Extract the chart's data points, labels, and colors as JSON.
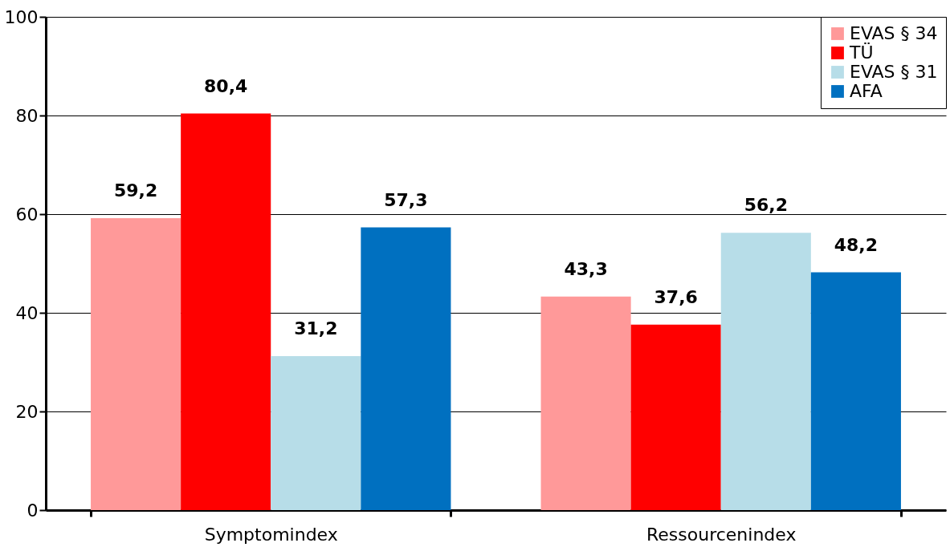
{
  "chart_data": {
    "type": "bar",
    "categories": [
      "Symptomindex",
      "Ressourcenindex"
    ],
    "series": [
      {
        "name": "EVAS § 34",
        "color": "#ff9999",
        "values": [
          59.2,
          43.3
        ],
        "value_labels": [
          "59,2",
          "43,3"
        ]
      },
      {
        "name": "TÜ",
        "color": "#ff0000",
        "values": [
          80.4,
          37.6
        ],
        "value_labels": [
          "80,4",
          "37,6"
        ]
      },
      {
        "name": "EVAS § 31",
        "color": "#b7dde8",
        "values": [
          31.2,
          56.2
        ],
        "value_labels": [
          "31,2",
          "56,2"
        ]
      },
      {
        "name": "AFA",
        "color": "#0070c0",
        "values": [
          57.3,
          48.2
        ],
        "value_labels": [
          "57,3",
          "48,2"
        ]
      }
    ],
    "ylim": [
      0,
      100
    ],
    "yticks": [
      0,
      20,
      40,
      60,
      80,
      100
    ],
    "grid": "y",
    "legend": "top right"
  }
}
